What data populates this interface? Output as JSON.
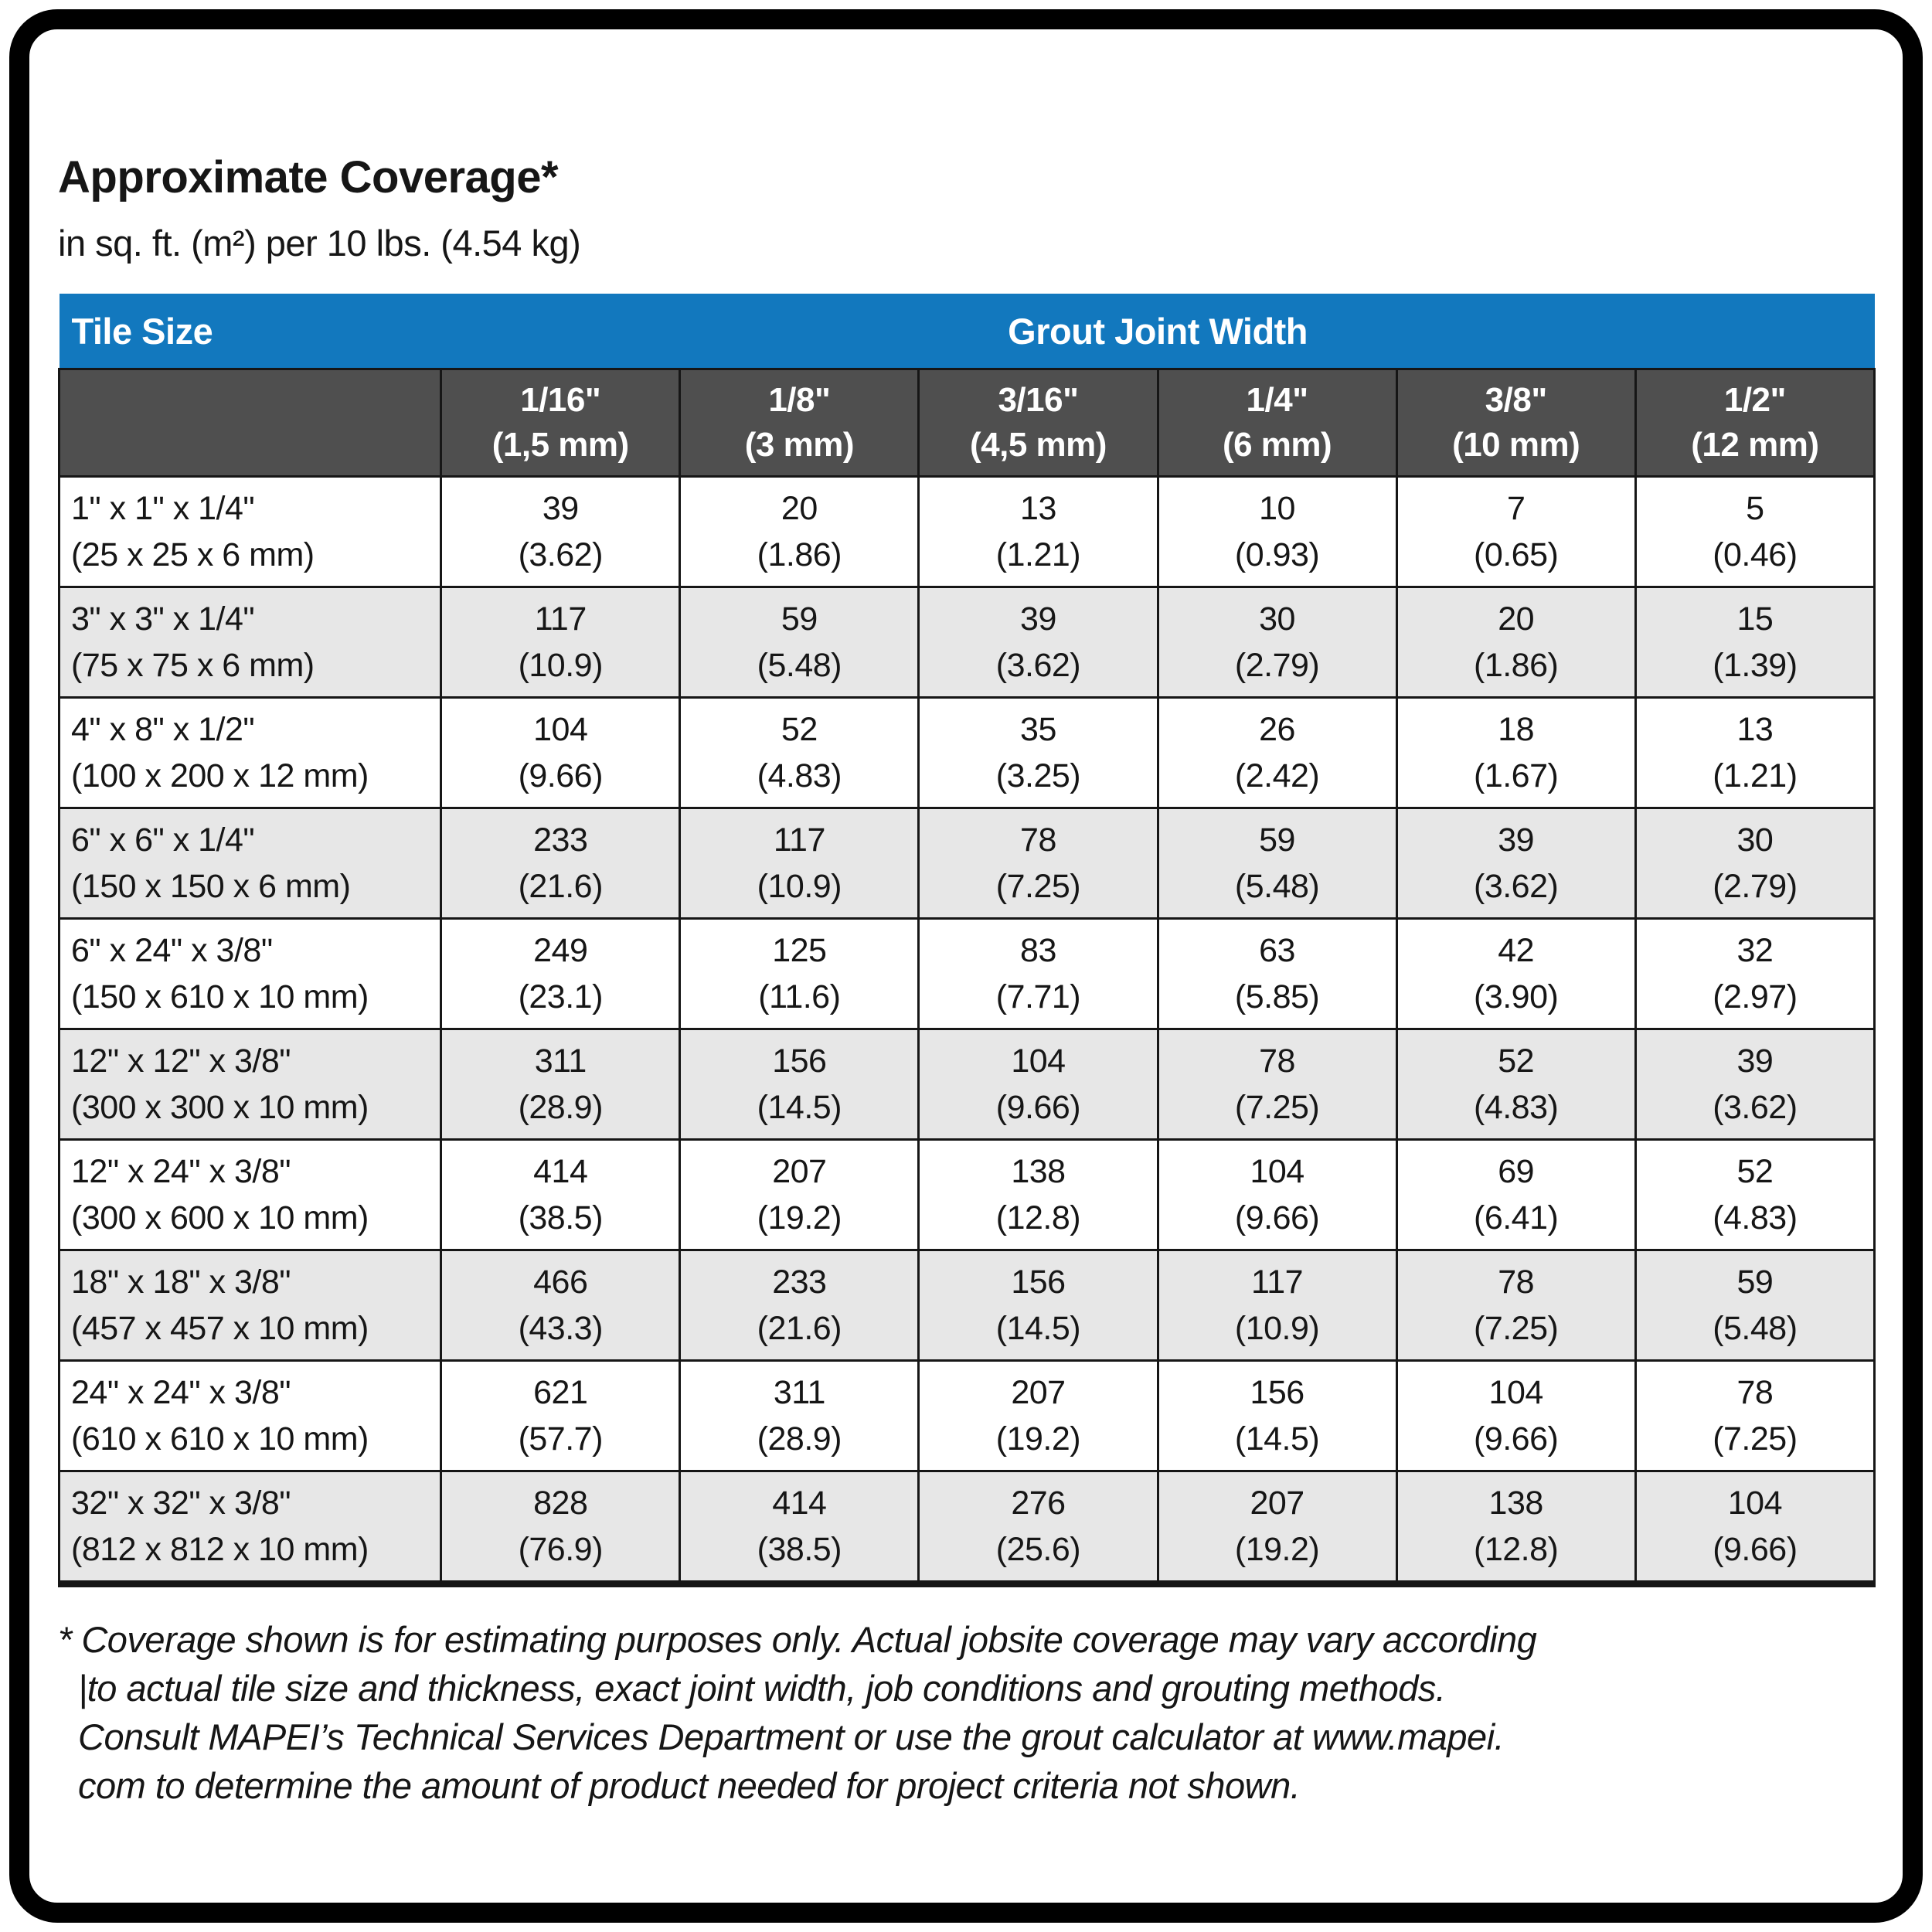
{
  "title": "Approximate Coverage*",
  "subtitle": "in sq. ft. (m²) per 10 lbs. (4.54 kg)",
  "table": {
    "corner_header": "Tile Size",
    "group_header": "Grout Joint Width",
    "columns": [
      {
        "inch": "1/16\"",
        "metric": "(1,5 mm)"
      },
      {
        "inch": "1/8\"",
        "metric": "(3 mm)"
      },
      {
        "inch": "3/16\"",
        "metric": "(4,5 mm)"
      },
      {
        "inch": "1/4\"",
        "metric": "(6 mm)"
      },
      {
        "inch": "3/8\"",
        "metric": "(10 mm)"
      },
      {
        "inch": "1/2\"",
        "metric": "(12 mm)"
      }
    ],
    "rows": [
      {
        "size_in": "1\" x 1\" x 1/4\"",
        "size_mm": "(25 x 25 x 6 mm)",
        "values": [
          [
            "39",
            "(3.62)"
          ],
          [
            "20",
            "(1.86)"
          ],
          [
            "13",
            "(1.21)"
          ],
          [
            "10",
            "(0.93)"
          ],
          [
            "7",
            "(0.65)"
          ],
          [
            "5",
            "(0.46)"
          ]
        ]
      },
      {
        "size_in": "3\" x 3\" x 1/4\"",
        "size_mm": "(75 x 75 x 6 mm)",
        "values": [
          [
            "117",
            "(10.9)"
          ],
          [
            "59",
            "(5.48)"
          ],
          [
            "39",
            "(3.62)"
          ],
          [
            "30",
            "(2.79)"
          ],
          [
            "20",
            "(1.86)"
          ],
          [
            "15",
            "(1.39)"
          ]
        ]
      },
      {
        "size_in": "4\" x 8\" x 1/2\"",
        "size_mm": "(100 x 200 x 12 mm)",
        "values": [
          [
            "104",
            "(9.66)"
          ],
          [
            "52",
            "(4.83)"
          ],
          [
            "35",
            "(3.25)"
          ],
          [
            "26",
            "(2.42)"
          ],
          [
            "18",
            "(1.67)"
          ],
          [
            "13",
            "(1.21)"
          ]
        ]
      },
      {
        "size_in": "6\" x 6\" x 1/4\"",
        "size_mm": "(150 x 150 x 6 mm)",
        "values": [
          [
            "233",
            "(21.6)"
          ],
          [
            "117",
            "(10.9)"
          ],
          [
            "78",
            "(7.25)"
          ],
          [
            "59",
            "(5.48)"
          ],
          [
            "39",
            "(3.62)"
          ],
          [
            "30",
            "(2.79)"
          ]
        ]
      },
      {
        "size_in": "6\" x 24\" x 3/8\"",
        "size_mm": "(150 x 610 x 10 mm)",
        "values": [
          [
            "249",
            "(23.1)"
          ],
          [
            "125",
            "(11.6)"
          ],
          [
            "83",
            "(7.71)"
          ],
          [
            "63",
            "(5.85)"
          ],
          [
            "42",
            "(3.90)"
          ],
          [
            "32",
            "(2.97)"
          ]
        ]
      },
      {
        "size_in": "12\" x 12\" x 3/8\"",
        "size_mm": "(300 x 300 x 10 mm)",
        "values": [
          [
            "311",
            "(28.9)"
          ],
          [
            "156",
            "(14.5)"
          ],
          [
            "104",
            "(9.66)"
          ],
          [
            "78",
            "(7.25)"
          ],
          [
            "52",
            "(4.83)"
          ],
          [
            "39",
            "(3.62)"
          ]
        ]
      },
      {
        "size_in": "12\" x 24\" x 3/8\"",
        "size_mm": "(300 x 600 x 10 mm)",
        "values": [
          [
            "414",
            "(38.5)"
          ],
          [
            "207",
            "(19.2)"
          ],
          [
            "138",
            "(12.8)"
          ],
          [
            "104",
            "(9.66)"
          ],
          [
            "69",
            "(6.41)"
          ],
          [
            "52",
            "(4.83)"
          ]
        ]
      },
      {
        "size_in": "18\" x 18\" x 3/8\"",
        "size_mm": "(457 x 457 x 10 mm)",
        "values": [
          [
            "466",
            "(43.3)"
          ],
          [
            "233",
            "(21.6)"
          ],
          [
            "156",
            "(14.5)"
          ],
          [
            "117",
            "(10.9)"
          ],
          [
            "78",
            "(7.25)"
          ],
          [
            "59",
            "(5.48)"
          ]
        ]
      },
      {
        "size_in": "24\" x 24\" x 3/8\"",
        "size_mm": "(610 x 610 x 10 mm)",
        "values": [
          [
            "621",
            "(57.7)"
          ],
          [
            "311",
            "(28.9)"
          ],
          [
            "207",
            "(19.2)"
          ],
          [
            "156",
            "(14.5)"
          ],
          [
            "104",
            "(9.66)"
          ],
          [
            "78",
            "(7.25)"
          ]
        ]
      },
      {
        "size_in": "32\" x 32\" x 3/8\"",
        "size_mm": "(812 x 812 x 10 mm)",
        "values": [
          [
            "828",
            "(76.9)"
          ],
          [
            "414",
            "(38.5)"
          ],
          [
            "276",
            "(25.6)"
          ],
          [
            "207",
            "(19.2)"
          ],
          [
            "138",
            "(12.8)"
          ],
          [
            "104",
            "(9.66)"
          ]
        ]
      }
    ]
  },
  "footnote": {
    "lines": [
      "* Coverage shown is for estimating purposes only. Actual jobsite coverage may vary according",
      "|to actual tile size and thickness, exact joint width, job conditions and grouting methods.",
      "Consult MAPEI’s Technical Services Department or use the grout calculator at www.mapei.",
      "com to determine the amount of product needed for project criteria not shown."
    ]
  },
  "colors": {
    "header_blue": "#1278be",
    "subheader_gray": "#4f4f4f",
    "row_alt_gray": "#e7e7e7",
    "border_black": "#161616"
  }
}
